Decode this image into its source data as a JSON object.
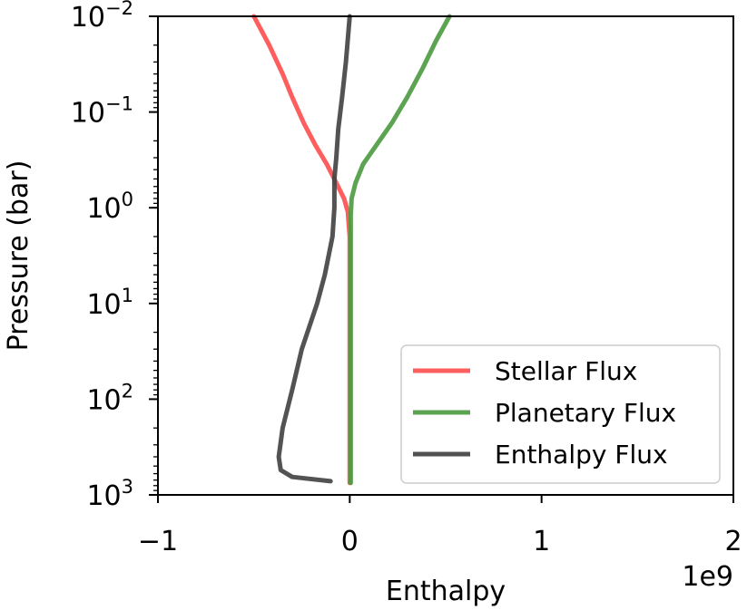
{
  "chart_data": {
    "type": "line",
    "title": "",
    "xlabel": "Enthalpy",
    "ylabel": "Pressure (bar)",
    "x_offset_label": "1e9",
    "xlim": [
      -1,
      2
    ],
    "ylim": [
      1000,
      0.01
    ],
    "y_scale": "log",
    "y_inverted": true,
    "grid": false,
    "legend_position": "lower-right",
    "x_ticks": [
      {
        "value": -1,
        "label": "−1"
      },
      {
        "value": 0,
        "label": "0"
      },
      {
        "value": 1,
        "label": "1"
      },
      {
        "value": 2,
        "label": "2"
      }
    ],
    "y_ticks": [
      {
        "value": 0.01,
        "base": "10",
        "exp": "−2"
      },
      {
        "value": 0.1,
        "base": "10",
        "exp": "−1"
      },
      {
        "value": 1,
        "base": "10",
        "exp": "0"
      },
      {
        "value": 10,
        "base": "10",
        "exp": "1"
      },
      {
        "value": 100,
        "base": "10",
        "exp": "2"
      },
      {
        "value": 1000,
        "base": "10",
        "exp": "3"
      }
    ],
    "series": [
      {
        "name": "Stellar Flux",
        "color": "#ff4d4d",
        "x": [
          -0.5,
          -0.42,
          -0.35,
          -0.3,
          -0.24,
          -0.18,
          -0.12,
          -0.07,
          -0.03,
          -0.01,
          0.0,
          0.0,
          0.0,
          0.0
        ],
        "y": [
          0.01,
          0.02,
          0.04,
          0.07,
          0.13,
          0.22,
          0.35,
          0.55,
          0.8,
          1.1,
          2,
          10,
          100,
          750
        ]
      },
      {
        "name": "Planetary Flux",
        "color": "#4a9a3f",
        "x": [
          0.52,
          0.45,
          0.38,
          0.3,
          0.22,
          0.14,
          0.07,
          0.03,
          0.01,
          0.005,
          0.005,
          0.005
        ],
        "y": [
          0.01,
          0.018,
          0.035,
          0.07,
          0.13,
          0.22,
          0.35,
          0.55,
          0.8,
          1.2,
          10,
          750
        ]
      },
      {
        "name": "Enthalpy Flux",
        "color": "#404040",
        "x": [
          0.0,
          -0.02,
          -0.04,
          -0.06,
          -0.07,
          -0.08,
          -0.08,
          -0.09,
          -0.13,
          -0.17,
          -0.25,
          -0.3,
          -0.35,
          -0.37,
          -0.36,
          -0.3,
          -0.1
        ],
        "y": [
          0.01,
          0.03,
          0.07,
          0.15,
          0.3,
          0.5,
          1.0,
          2.0,
          5.0,
          10,
          30,
          80,
          200,
          400,
          550,
          650,
          720
        ]
      }
    ]
  }
}
